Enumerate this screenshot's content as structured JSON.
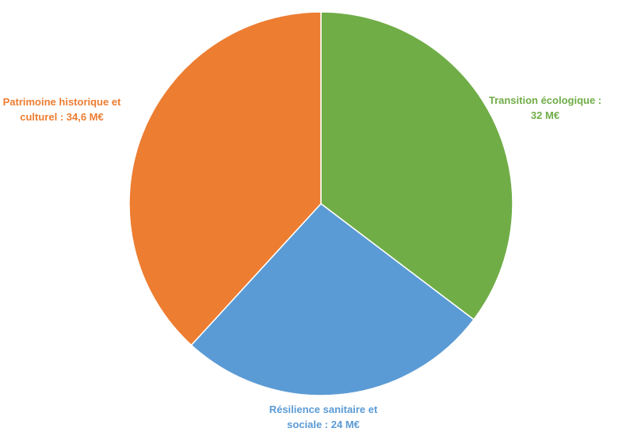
{
  "chart_data": {
    "type": "pie",
    "legend": "none",
    "slices": [
      {
        "label_lines": [
          "Transition écologique :",
          "32 M€"
        ],
        "value": 32,
        "color": "#70AD47"
      },
      {
        "label_lines": [
          "Résilience sanitaire et",
          "sociale : 24 M€"
        ],
        "value": 24,
        "color": "#5B9BD5"
      },
      {
        "label_lines": [
          "Patrimoine historique et",
          "culturel : 34,6 M€"
        ],
        "value": 34.6,
        "color": "#ED7D31"
      }
    ]
  }
}
